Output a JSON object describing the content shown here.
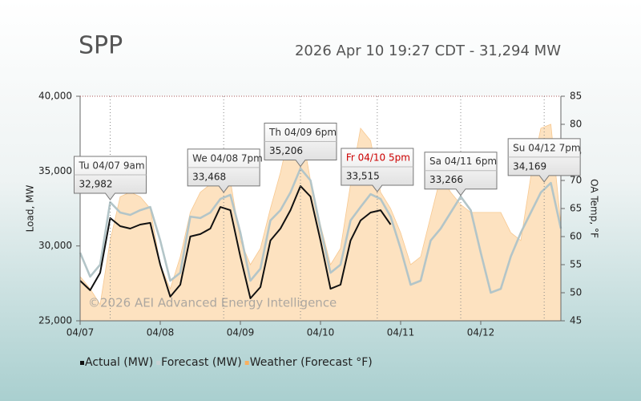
{
  "header": {
    "title": "SPP",
    "status": "2026 Apr 10 19:27 CDT - 31,294 MW"
  },
  "chart_data": {
    "type": "line",
    "ylabel": "Load, MW",
    "y2label": "OA Temp, °F",
    "xlim": [
      0,
      144
    ],
    "xticks": [
      {
        "value": 0,
        "label": "04/07"
      },
      {
        "value": 24,
        "label": "04/08"
      },
      {
        "value": 48,
        "label": "04/09"
      },
      {
        "value": 72,
        "label": "04/10"
      },
      {
        "value": 96,
        "label": "04/11"
      },
      {
        "value": 120,
        "label": "04/12"
      }
    ],
    "ylim": [
      25000,
      40000
    ],
    "yticks": [
      {
        "value": 25000,
        "label": "25,000"
      },
      {
        "value": 30000,
        "label": "30,000"
      },
      {
        "value": 35000,
        "label": "35,000"
      },
      {
        "value": 40000,
        "label": "40,000"
      }
    ],
    "y2lim": [
      45,
      85
    ],
    "y2ticks": [
      45,
      50,
      55,
      60,
      65,
      70,
      75,
      80,
      85
    ],
    "x": [
      0,
      3,
      6,
      9,
      12,
      15,
      18,
      21,
      24,
      27,
      30,
      33,
      36,
      39,
      42,
      45,
      48,
      51,
      54,
      57,
      60,
      63,
      66,
      69,
      72,
      75,
      78,
      81,
      84,
      87,
      90,
      93,
      96,
      99,
      102,
      105,
      108,
      111,
      114,
      117,
      120,
      123,
      126,
      129,
      132,
      135,
      138,
      141,
      144
    ],
    "series": [
      {
        "name": "Weather (Forecast °F)",
        "type": "area",
        "axis": "y2",
        "color": "#fde2c0",
        "values": [
          52.9,
          50.7,
          47.9,
          59.3,
          67.1,
          67.9,
          67.1,
          65,
          55,
          50.7,
          56.4,
          64.3,
          67.9,
          69.3,
          72.1,
          70,
          59.3,
          55,
          57.9,
          65,
          71.4,
          79.3,
          80,
          70,
          62.1,
          55,
          57.9,
          69.3,
          79.3,
          77.1,
          67.9,
          65,
          60.7,
          55,
          56.4,
          63.6,
          70.7,
          67.9,
          65.7,
          64.3,
          64.3,
          64.3,
          64.3,
          60.7,
          59.3,
          70.7,
          79.3,
          80,
          62.1
        ]
      },
      {
        "name": "Forecast (MW)",
        "type": "line",
        "color": "#b3c5c8",
        "values": [
          29550,
          27950,
          28750,
          32930,
          32230,
          32070,
          32390,
          32600,
          30360,
          27680,
          28210,
          31960,
          31860,
          32230,
          33140,
          33410,
          30890,
          27680,
          28480,
          31700,
          32390,
          33570,
          35180,
          34380,
          31160,
          28210,
          28750,
          31700,
          32600,
          33460,
          33140,
          31960,
          29820,
          27410,
          27680,
          30360,
          31160,
          32230,
          33300,
          32390,
          29550,
          26880,
          27140,
          29290,
          30890,
          32230,
          33570,
          34210,
          31160
        ]
      },
      {
        "name": "Actual (MW)",
        "type": "line",
        "color": "#111111",
        "values": [
          27680,
          27040,
          28210,
          31860,
          31320,
          31160,
          31430,
          31540,
          28750,
          26610,
          27410,
          30630,
          30790,
          31160,
          32600,
          32390,
          29290,
          26500,
          27250,
          30360,
          31160,
          32390,
          34000,
          33300,
          30360,
          27140,
          27410,
          30360,
          31700,
          32230,
          32390,
          31430,
          null,
          null,
          null,
          null,
          null,
          null,
          null,
          null,
          null,
          null,
          null,
          null,
          null,
          null,
          null,
          null,
          null
        ]
      }
    ],
    "annotations": [
      {
        "x": 9,
        "label": "Tu 04/07 9am",
        "value": 32982,
        "value_label": "32,982",
        "color": "#333333"
      },
      {
        "x": 43,
        "label": "We 04/08 7pm",
        "value": 33468,
        "value_label": "33,468",
        "color": "#333333"
      },
      {
        "x": 66,
        "label": "Th 04/09 6pm",
        "value": 35206,
        "value_label": "35,206",
        "color": "#333333"
      },
      {
        "x": 89,
        "label": "Fr 04/10 5pm",
        "value": 33515,
        "value_label": "33,515",
        "color": "#cc0000"
      },
      {
        "x": 114,
        "label": "Sa 04/11 6pm",
        "value": 33266,
        "value_label": "33,266",
        "color": "#333333"
      },
      {
        "x": 139,
        "label": "Su 04/12 7pm",
        "value": 34169,
        "value_label": "34,169",
        "color": "#333333"
      }
    ],
    "watermark": "©2026 AEI Advanced Energy Intelligence",
    "legend": "bottom-left"
  }
}
